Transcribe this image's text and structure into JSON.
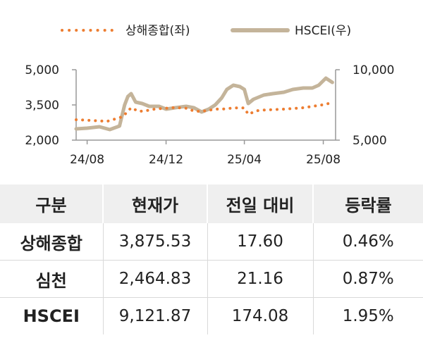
{
  "chart_data": {
    "type": "line",
    "legend": [
      {
        "name": "상해종합(좌)",
        "color": "#ed7d31",
        "style": "dotted"
      },
      {
        "name": "HSCEI(우)",
        "color": "#c4b49a",
        "style": "solid"
      }
    ],
    "legend_placement": "top-center",
    "x_tick_labels": [
      "24/08",
      "24/12",
      "25/04",
      "25/08"
    ],
    "x_ticks": [
      "2024-08",
      "2024-12",
      "2025-04",
      "2025-08"
    ],
    "x_range": [
      "2024-07-15",
      "2025-08-20"
    ],
    "y_left": {
      "ticks": [
        2000,
        3500,
        5000
      ],
      "tick_labels": [
        "2,000",
        "3,500",
        "5,000"
      ],
      "range": [
        2000,
        5000
      ]
    },
    "y_right": {
      "ticks": [
        5000,
        10000
      ],
      "tick_labels": [
        "5,000",
        "10,000"
      ],
      "range": [
        5000,
        10000
      ]
    },
    "grid": false,
    "series": [
      {
        "name": "상해종합(좌)",
        "axis": "left",
        "x": [
          "2024-07-15",
          "2024-08-01",
          "2024-09-01",
          "2024-09-25",
          "2024-10-08",
          "2024-10-20",
          "2024-11-01",
          "2024-11-15",
          "2024-12-01",
          "2024-12-15",
          "2025-01-01",
          "2025-01-15",
          "2025-02-01",
          "2025-02-15",
          "2025-03-01",
          "2025-03-15",
          "2025-04-01",
          "2025-04-07",
          "2025-04-20",
          "2025-05-01",
          "2025-06-01",
          "2025-07-01",
          "2025-08-01",
          "2025-08-15"
        ],
        "y": [
          2870,
          2850,
          2800,
          3000,
          3380,
          3220,
          3260,
          3330,
          3360,
          3390,
          3360,
          3220,
          3250,
          3320,
          3330,
          3370,
          3370,
          3100,
          3250,
          3280,
          3320,
          3380,
          3510,
          3600
        ]
      },
      {
        "name": "HSCEI(우)",
        "axis": "right",
        "x": [
          "2024-07-15",
          "2024-08-01",
          "2024-08-20",
          "2024-09-05",
          "2024-09-20",
          "2024-09-28",
          "2024-10-03",
          "2024-10-08",
          "2024-10-15",
          "2024-10-25",
          "2024-11-05",
          "2024-11-20",
          "2024-12-01",
          "2024-12-15",
          "2025-01-01",
          "2025-01-13",
          "2025-01-25",
          "2025-02-05",
          "2025-02-15",
          "2025-02-25",
          "2025-03-05",
          "2025-03-15",
          "2025-03-25",
          "2025-04-01",
          "2025-04-07",
          "2025-04-15",
          "2025-05-01",
          "2025-05-15",
          "2025-06-01",
          "2025-06-15",
          "2025-07-01",
          "2025-07-15",
          "2025-07-25",
          "2025-08-05",
          "2025-08-15"
        ],
        "y": [
          5800,
          5850,
          5950,
          5750,
          6000,
          7500,
          8100,
          8300,
          7700,
          7600,
          7400,
          7400,
          7200,
          7300,
          7400,
          7300,
          7000,
          7200,
          7500,
          8000,
          8600,
          8900,
          8800,
          8600,
          7600,
          7900,
          8200,
          8300,
          8400,
          8600,
          8700,
          8700,
          8900,
          9400,
          9100
        ]
      }
    ]
  },
  "table": {
    "headers": [
      "구분",
      "현재가",
      "전일 대비",
      "등락률"
    ],
    "rows": [
      [
        "상해종합",
        "3,875.53",
        "17.60",
        "0.46%"
      ],
      [
        "심천",
        "2,464.83",
        "21.16",
        "0.87%"
      ],
      [
        "HSCEI",
        "9,121.87",
        "174.08",
        "1.95%"
      ]
    ]
  }
}
